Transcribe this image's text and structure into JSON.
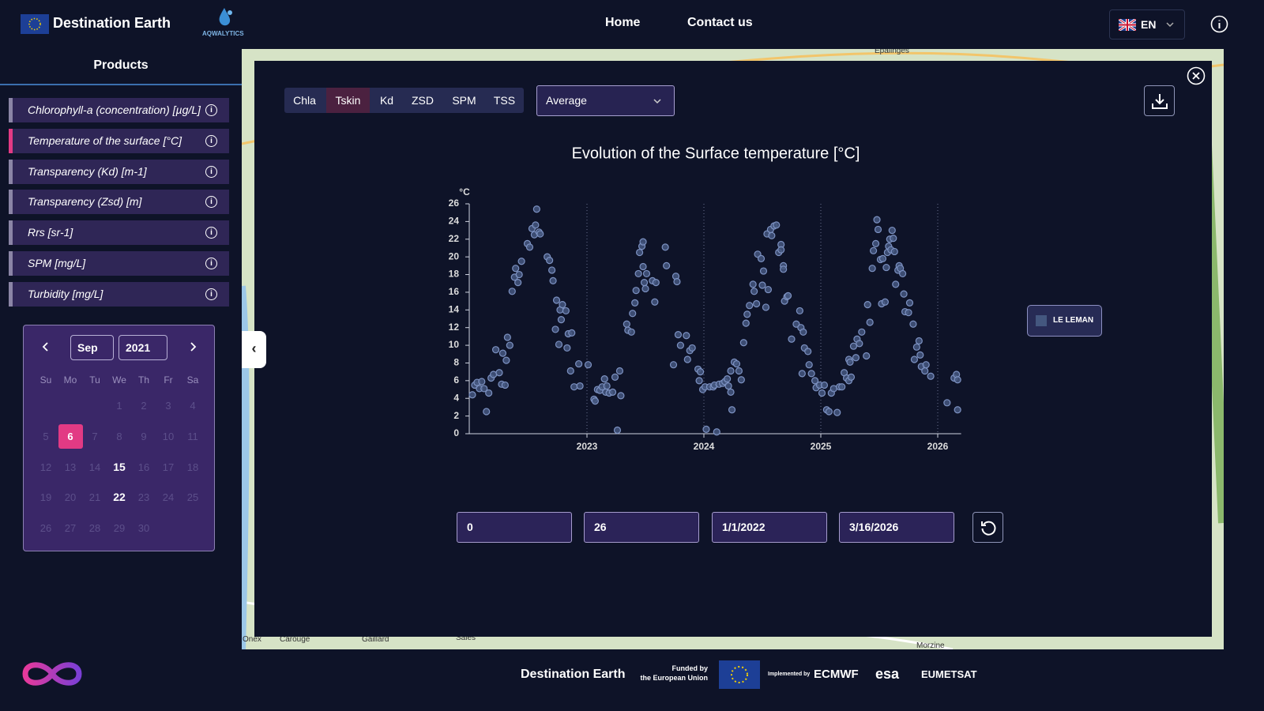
{
  "header": {
    "brand": "Destination Earth",
    "partner": "AQWALYTICS",
    "nav": [
      "Home",
      "Contact us"
    ],
    "language": "EN"
  },
  "sidebar": {
    "title": "Products",
    "products": [
      "Chlorophyll-a (concentration) [µg/L]",
      "Temperature of the surface [°C]",
      "Transparency (Kd) [m-1]",
      "Transparency (Zsd) [m]",
      "Rrs [sr-1]",
      "SPM [mg/L]",
      "Turbidity [mg/L]"
    ],
    "selected_product": 1
  },
  "calendar": {
    "month": "Sep",
    "year": "2021",
    "weekdays": [
      "Su",
      "Mo",
      "Tu",
      "We",
      "Th",
      "Fr",
      "Sa"
    ],
    "first_weekday": 3,
    "days": [
      1,
      2,
      3,
      4,
      5,
      6,
      7,
      8,
      9,
      10,
      11,
      12,
      13,
      14,
      15,
      16,
      17,
      18,
      19,
      20,
      21,
      22,
      23,
      24,
      25,
      26,
      27,
      28,
      29,
      30
    ],
    "selected_day": 6,
    "bold_days": [
      15,
      22
    ]
  },
  "map_labels": [
    "Epalinges",
    "Onex",
    "Carouge",
    "Gaillard",
    "Sales",
    "Morzine"
  ],
  "panel": {
    "tabs": [
      "Chla",
      "Tskin",
      "Kd",
      "ZSD",
      "SPM",
      "TSS"
    ],
    "selected_tab": 1,
    "statistic": "Average",
    "date_range": [
      "1/1/2022",
      "3/16/2026"
    ]
  },
  "chart_data": {
    "type": "scatter",
    "title": "Evolution of the Surface temperature [°C]",
    "y_label": "°C",
    "x": [
      2022.02,
      2022.04,
      2022.06,
      2022.08,
      2022.1,
      2022.12,
      2022.14,
      2022.16,
      2022.18,
      2022.2,
      2022.22,
      2022.25,
      2022.27,
      2022.28,
      2022.3,
      2022.31,
      2022.32,
      2022.34,
      2022.36,
      2022.38,
      2022.39,
      2022.41,
      2022.42,
      2022.44,
      2022.49,
      2022.51,
      2022.53,
      2022.55,
      2022.56,
      2022.57,
      2022.59,
      2022.6,
      2022.66,
      2022.68,
      2022.7,
      2022.71,
      2022.73,
      2022.74,
      2022.76,
      2022.77,
      2022.78,
      2022.79,
      2022.82,
      2022.83,
      2022.84,
      2022.86,
      2022.87,
      2022.89,
      2022.93,
      2022.94,
      2023.01,
      2023.06,
      2023.07,
      2023.09,
      2023.11,
      2023.13,
      2023.15,
      2023.16,
      2023.17,
      2023.19,
      2023.22,
      2023.24,
      2023.26,
      2023.28,
      2023.29,
      2023.34,
      2023.35,
      2023.38,
      2023.39,
      2023.41,
      2023.42,
      2023.44,
      2023.45,
      2023.47,
      2023.48,
      2023.48,
      2023.49,
      2023.5,
      2023.51,
      2023.56,
      2023.58,
      2023.59,
      2023.67,
      2023.68,
      2023.74,
      2023.76,
      2023.77,
      2023.78,
      2023.8,
      2023.85,
      2023.86,
      2023.88,
      2023.9,
      2023.95,
      2023.96,
      2023.97,
      2023.99,
      2024.01,
      2024.02,
      2024.05,
      2024.08,
      2024.09,
      2024.11,
      2024.13,
      2024.16,
      2024.18,
      2024.2,
      2024.21,
      2024.23,
      2024.23,
      2024.24,
      2024.26,
      2024.28,
      2024.3,
      2024.32,
      2024.34,
      2024.36,
      2024.37,
      2024.39,
      2024.42,
      2024.43,
      2024.45,
      2024.46,
      2024.49,
      2024.5,
      2024.51,
      2024.53,
      2024.54,
      2024.55,
      2024.57,
      2024.58,
      2024.6,
      2024.62,
      2024.64,
      2024.66,
      2024.66,
      2024.68,
      2024.68,
      2024.69,
      2024.71,
      2024.72,
      2024.75,
      2024.79,
      2024.82,
      2024.83,
      2024.84,
      2024.85,
      2024.86,
      2024.89,
      2024.9,
      2024.92,
      2024.95,
      2024.96,
      2024.99,
      2025.01,
      2025.03,
      2025.05,
      2025.07,
      2025.09,
      2025.11,
      2025.14,
      2025.16,
      2025.18,
      2025.2,
      2025.22,
      2025.24,
      2025.24,
      2025.25,
      2025.26,
      2025.28,
      2025.3,
      2025.31,
      2025.33,
      2025.35,
      2025.39,
      2025.4,
      2025.42,
      2025.44,
      2025.45,
      2025.47,
      2025.48,
      2025.49,
      2025.51,
      2025.52,
      2025.53,
      2025.55,
      2025.56,
      2025.57,
      2025.58,
      2025.59,
      2025.6,
      2025.61,
      2025.62,
      2025.63,
      2025.64,
      2025.66,
      2025.67,
      2025.68,
      2025.7,
      2025.71,
      2025.72,
      2025.75,
      2025.76,
      2025.79,
      2025.8,
      2025.82,
      2025.84,
      2025.85,
      2025.86,
      2025.89,
      2025.9,
      2025.94,
      2026.08,
      2026.14,
      2026.16,
      2026.17,
      2026.17
    ],
    "series": [
      {
        "name": "LE LEMAN",
        "color": "#44577f",
        "values": [
          4.4,
          5.5,
          5.8,
          5.1,
          5.9,
          5.1,
          2.5,
          4.6,
          6.3,
          6.7,
          9.5,
          6.9,
          5.6,
          9.1,
          5.5,
          8.3,
          10.9,
          10.0,
          16.1,
          17.7,
          18.7,
          17.1,
          18.0,
          19.5,
          21.5,
          21.1,
          23.2,
          22.5,
          23.6,
          25.4,
          22.8,
          22.6,
          20.0,
          19.6,
          18.5,
          17.3,
          11.8,
          15.1,
          10.1,
          14.0,
          12.9,
          14.6,
          13.9,
          9.7,
          11.3,
          7.1,
          11.4,
          5.3,
          7.9,
          5.4,
          7.8,
          3.9,
          3.7,
          5.0,
          4.9,
          5.3,
          6.2,
          4.7,
          5.4,
          4.6,
          4.7,
          6.4,
          0.4,
          7.1,
          4.3,
          12.4,
          11.7,
          11.5,
          13.6,
          14.8,
          16.2,
          18.1,
          20.5,
          21.2,
          18.9,
          21.7,
          17.1,
          16.4,
          18.1,
          17.3,
          14.9,
          17.1,
          21.1,
          19.0,
          7.8,
          17.8,
          17.2,
          11.2,
          10.0,
          11.1,
          8.4,
          9.4,
          9.7,
          7.3,
          6.0,
          7.0,
          5.0,
          5.3,
          0.5,
          5.3,
          5.3,
          5.5,
          0.2,
          5.6,
          5.7,
          5.9,
          6.2,
          5.4,
          7.1,
          4.7,
          2.7,
          8.1,
          7.9,
          7.1,
          6.1,
          10.3,
          12.5,
          13.5,
          14.5,
          16.9,
          16.1,
          14.7,
          20.3,
          19.8,
          16.8,
          18.4,
          14.3,
          22.6,
          16.3,
          23.1,
          22.4,
          23.5,
          23.6,
          20.5,
          21.4,
          20.8,
          19.0,
          18.6,
          15.0,
          15.5,
          15.6,
          10.7,
          12.4,
          13.9,
          12.0,
          6.8,
          11.5,
          9.7,
          9.3,
          7.8,
          6.8,
          6.0,
          5.2,
          5.5,
          4.6,
          5.5,
          2.7,
          2.5,
          4.6,
          5.1,
          2.4,
          5.3,
          5.3,
          6.9,
          6.3,
          6.0,
          8.4,
          8.1,
          6.4,
          9.9,
          8.6,
          10.7,
          10.2,
          11.5,
          8.8,
          14.6,
          12.6,
          18.7,
          20.7,
          21.5,
          24.2,
          23.1,
          19.7,
          14.7,
          19.8,
          14.9,
          18.8,
          20.5,
          21.2,
          22.0,
          20.8,
          23.0,
          22.1,
          20.6,
          16.9,
          18.5,
          19.0,
          18.7,
          18.1,
          15.8,
          13.8,
          13.7,
          14.8,
          12.4,
          8.4,
          9.8,
          10.5,
          8.9,
          7.6,
          7.1,
          7.8,
          6.5,
          3.5,
          6.3,
          6.7,
          6.1,
          2.7
        ]
      }
    ],
    "xlim": [
      2022,
      2026.2
    ],
    "xticks": [
      2023,
      2024,
      2025,
      2026
    ],
    "ylim": [
      0,
      26
    ],
    "yticks": [
      0,
      2,
      4,
      6,
      8,
      10,
      12,
      14,
      16,
      18,
      20,
      22,
      24,
      26
    ],
    "grid": "x",
    "legend": "right"
  },
  "footer": {
    "brand": "Destination Earth",
    "funded": [
      "Funded by",
      "the European Union"
    ],
    "implemented": "Implemented by",
    "partners": [
      "ECMWF",
      "esa",
      "EUMETSAT"
    ]
  }
}
